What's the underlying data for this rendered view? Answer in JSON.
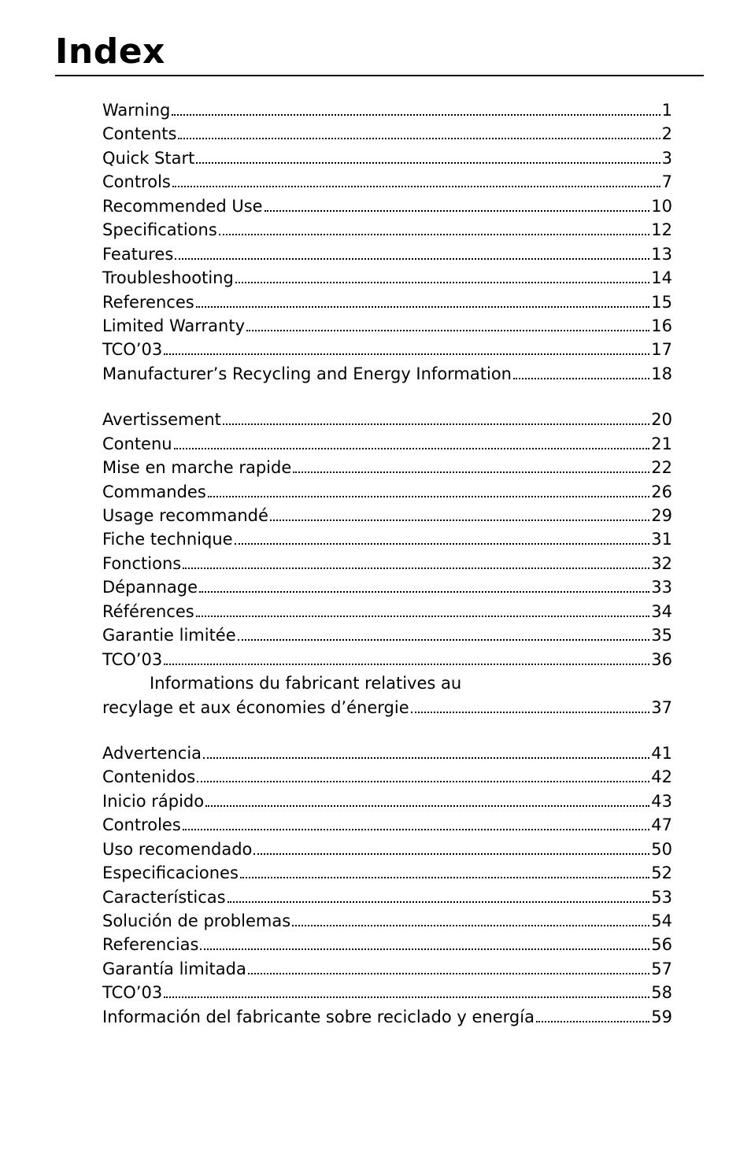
{
  "title": "Index",
  "sections": [
    {
      "entries": [
        {
          "label": "Warning",
          "page": "1"
        },
        {
          "label": "Contents",
          "page": "2"
        },
        {
          "label": "Quick Start",
          "page": "3"
        },
        {
          "label": "Controls",
          "page": "7"
        },
        {
          "label": "Recommended Use",
          "page": "10"
        },
        {
          "label": "Specifications",
          "page": "12"
        },
        {
          "label": "Features",
          "page": "13"
        },
        {
          "label": "Troubleshooting",
          "page": "14"
        },
        {
          "label": "References",
          "page": "15"
        },
        {
          "label": "Limited Warranty",
          "page": "16"
        },
        {
          "label": "TCO’03",
          "page": "17"
        },
        {
          "label": "Manufacturer’s Recycling and Energy Information",
          "page": "18"
        }
      ]
    },
    {
      "entries": [
        {
          "label": "Avertissement",
          "page": "20"
        },
        {
          "label": "Contenu",
          "page": "21"
        },
        {
          "label": "Mise en marche rapide",
          "page": "22"
        },
        {
          "label": "Commandes",
          "page": "26"
        },
        {
          "label": "Usage recommandé",
          "page": "29"
        },
        {
          "label": "Fiche technique",
          "page": "31"
        },
        {
          "label": "Fonctions",
          "page": "32"
        },
        {
          "label": "Dépannage",
          "page": "33"
        },
        {
          "label": "Références",
          "page": "34"
        },
        {
          "label": "Garantie limitée",
          "page": "35"
        },
        {
          "label": "TCO’03",
          "page": "36"
        },
        {
          "label_part1": "Informations du fabricant relatives au",
          "label": "recylage et aux économies d’énergie",
          "page": "37"
        }
      ]
    },
    {
      "entries": [
        {
          "label": "Advertencia",
          "page": "41"
        },
        {
          "label": "Contenidos",
          "page": "42"
        },
        {
          "label": "Inicio rápido",
          "page": "43"
        },
        {
          "label": "Controles",
          "page": "47"
        },
        {
          "label": "Uso recomendado",
          "page": "50"
        },
        {
          "label": "Especificaciones",
          "page": "52"
        },
        {
          "label": "Características",
          "page": "53"
        },
        {
          "label": "Solución de problemas",
          "page": "54"
        },
        {
          "label": "Referencias",
          "page": "56"
        },
        {
          "label": "Garantía limitada",
          "page": "57"
        },
        {
          "label": "TCO’03",
          "page": "58"
        },
        {
          "label": "Información del fabricante sobre reciclado y energía",
          "page": "59"
        }
      ]
    }
  ]
}
